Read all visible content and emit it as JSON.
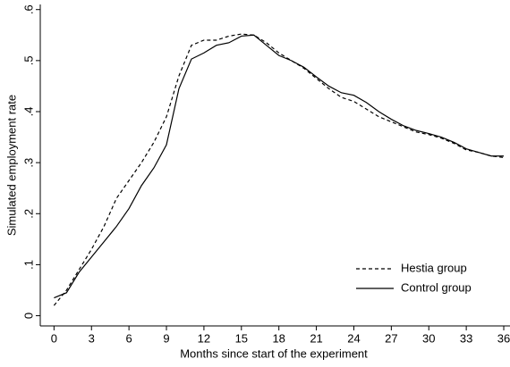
{
  "chart_data": {
    "type": "line",
    "x_label": "Months since start of the experiment",
    "y_label": "Simulated employment rate",
    "x": [
      0,
      1,
      2,
      3,
      4,
      5,
      6,
      7,
      8,
      9,
      10,
      11,
      12,
      13,
      14,
      15,
      16,
      17,
      18,
      19,
      20,
      21,
      22,
      23,
      24,
      25,
      26,
      27,
      28,
      29,
      30,
      31,
      32,
      33,
      34,
      35,
      36
    ],
    "series": [
      {
        "name": "Hestia group",
        "color": "#000000",
        "dash": "dash",
        "values": [
          0.02,
          0.05,
          0.09,
          0.13,
          0.175,
          0.23,
          0.265,
          0.3,
          0.34,
          0.39,
          0.47,
          0.53,
          0.54,
          0.54,
          0.548,
          0.552,
          0.55,
          0.535,
          0.515,
          0.5,
          0.485,
          0.465,
          0.445,
          0.428,
          0.42,
          0.405,
          0.39,
          0.38,
          0.37,
          0.36,
          0.355,
          0.348,
          0.338,
          0.325,
          0.32,
          0.313,
          0.31
        ]
      },
      {
        "name": "Control group",
        "color": "#000000",
        "dash": "solid",
        "values": [
          0.035,
          0.045,
          0.085,
          0.115,
          0.145,
          0.175,
          0.21,
          0.255,
          0.29,
          0.335,
          0.445,
          0.503,
          0.515,
          0.53,
          0.535,
          0.548,
          0.55,
          0.53,
          0.51,
          0.5,
          0.487,
          0.468,
          0.45,
          0.437,
          0.432,
          0.418,
          0.4,
          0.385,
          0.372,
          0.363,
          0.357,
          0.35,
          0.34,
          0.327,
          0.32,
          0.313,
          0.313
        ]
      }
    ],
    "xlim": [
      -1.1,
      36.5
    ],
    "xticks": [
      0,
      3,
      6,
      9,
      12,
      15,
      18,
      21,
      24,
      27,
      30,
      33,
      36
    ],
    "ylim": [
      -0.02,
      0.61
    ],
    "yticks": [
      0,
      {
        "value": 0.1,
        "label": ".1"
      },
      {
        "value": 0.2,
        "label": ".2"
      },
      {
        "value": 0.3,
        "label": ".3"
      },
      {
        "value": 0.4,
        "label": ".4"
      },
      {
        "value": 0.5,
        "label": ".5"
      },
      {
        "value": 0.6,
        "label": ".6"
      }
    ],
    "legend": "lower right"
  }
}
